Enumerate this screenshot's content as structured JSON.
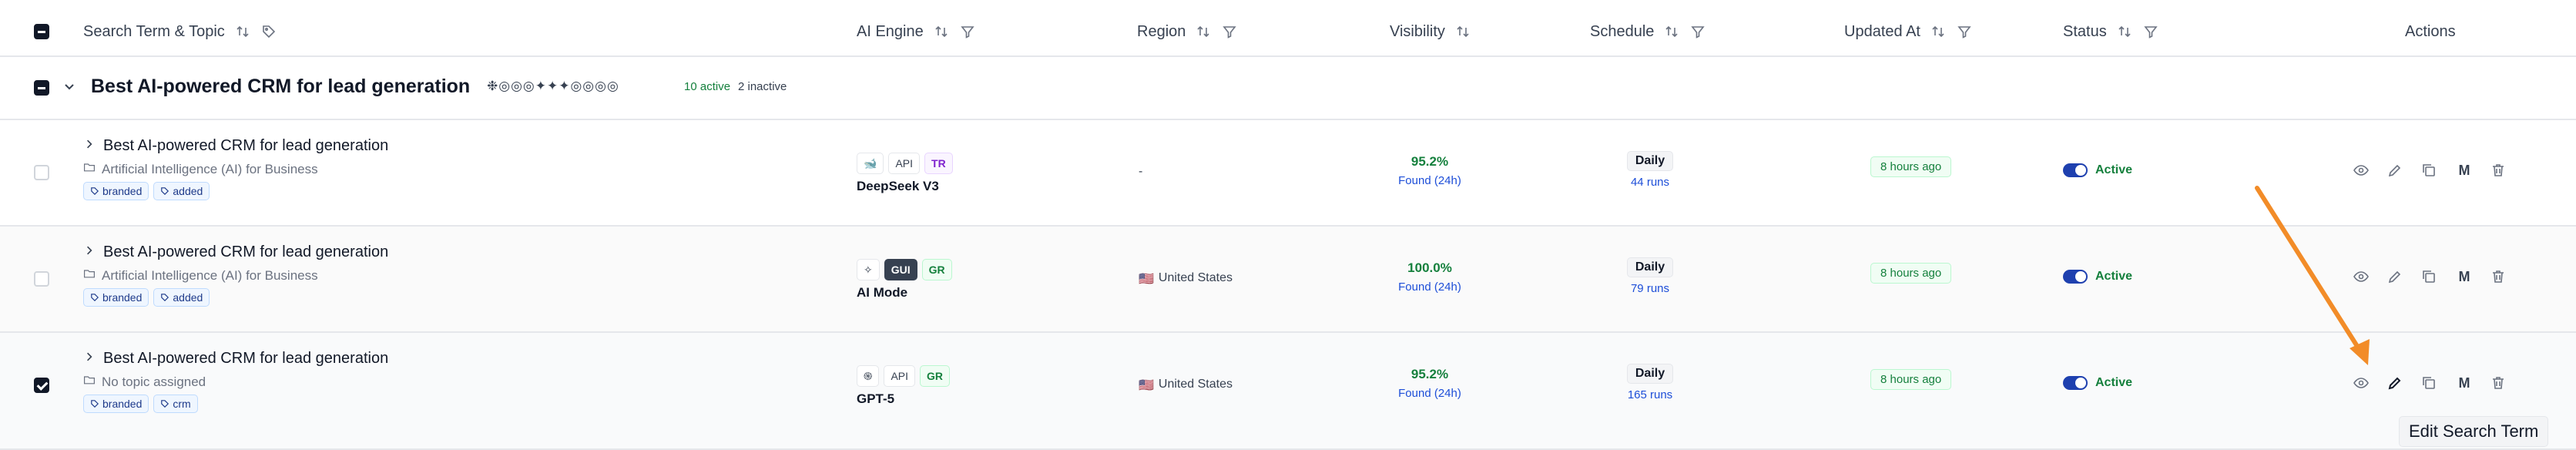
{
  "header": {
    "col_search": "Search Term & Topic",
    "col_engine": "AI Engine",
    "col_region": "Region",
    "col_visibility": "Visibility",
    "col_schedule": "Schedule",
    "col_updated": "Updated At",
    "col_status": "Status",
    "col_actions": "Actions"
  },
  "group": {
    "title": "Best AI-powered CRM for lead generation",
    "engine_icons": "❉◎◎◎✦✦✦◎◎◎◎",
    "active": "10 active",
    "inactive": "2 inactive"
  },
  "rows": [
    {
      "title": "Best AI-powered CRM for lead generation",
      "topic": "Artificial Intelligence (AI) for Business",
      "tags": [
        "branded",
        "added"
      ],
      "engine_icon": "whale-icon",
      "engine_mode": "API",
      "engine_region": "TR",
      "engine_name": "DeepSeek V3",
      "region": "-",
      "visibility": "95.2%",
      "found": "Found (24h)",
      "schedule": "Daily",
      "runs": "44 runs",
      "updated": "8 hours ago",
      "status": "Active",
      "checked": false
    },
    {
      "title": "Best AI-powered CRM for lead generation",
      "topic": "Artificial Intelligence (AI) for Business",
      "tags": [
        "branded",
        "added"
      ],
      "engine_icon": "sparkle-search-icon",
      "engine_mode": "GUI",
      "engine_region": "GR",
      "engine_name": "AI Mode",
      "region_flag": "🇺🇸",
      "region": "United States",
      "visibility": "100.0%",
      "found": "Found (24h)",
      "schedule": "Daily",
      "runs": "79 runs",
      "updated": "8 hours ago",
      "status": "Active",
      "checked": false
    },
    {
      "title": "Best AI-powered CRM for lead generation",
      "topic": "No topic assigned",
      "tags": [
        "branded",
        "crm"
      ],
      "engine_icon": "openai-icon",
      "engine_mode": "API",
      "engine_region": "GR",
      "engine_name": "GPT-5",
      "region_flag": "🇺🇸",
      "region": "United States",
      "visibility": "95.2%",
      "found": "Found (24h)",
      "schedule": "Daily",
      "runs": "165 runs",
      "updated": "8 hours ago",
      "status": "Active",
      "checked": true
    }
  ],
  "action_m_label": "M",
  "tooltip": "Edit Search Term",
  "colors": {
    "active_green": "#15803d",
    "link_blue": "#1d4ed8",
    "toggle_blue": "#1e40af",
    "annotation_arrow": "#f28c28"
  }
}
